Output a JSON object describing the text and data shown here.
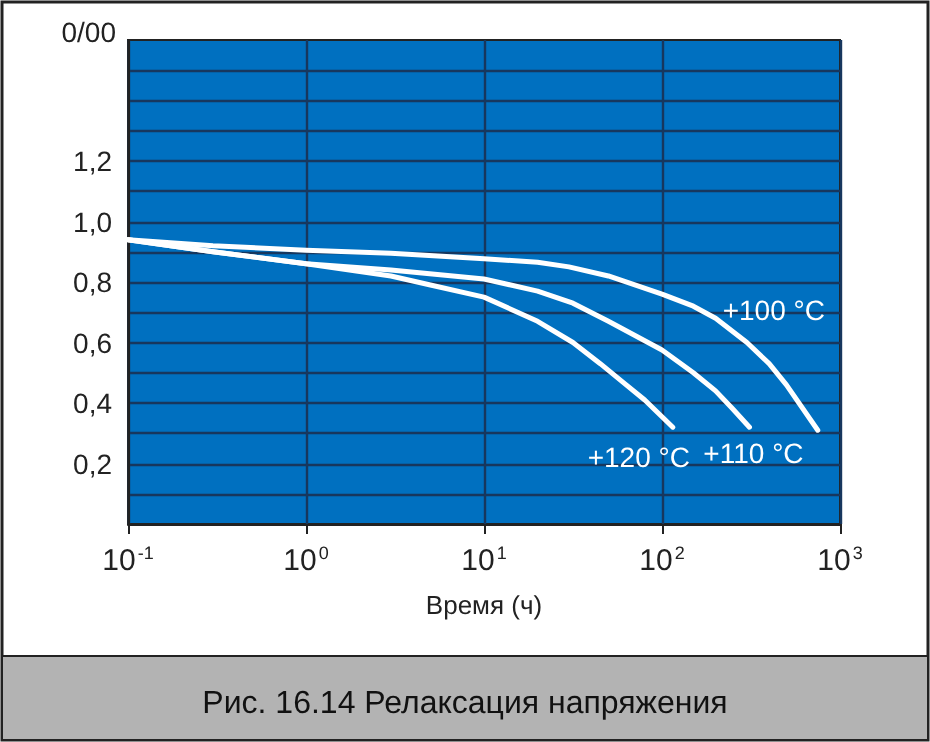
{
  "chart_data": {
    "type": "line",
    "title": "Рис. 16.14 Релаксация напряжения",
    "xlabel": "Время (ч)",
    "ylabel": "0/00",
    "log": "x",
    "grid": true,
    "marker": "none",
    "line_style": "solid",
    "xlim": [
      0.1,
      1000
    ],
    "xticks": [
      {
        "value": 0.1,
        "label": "10$^{-1}$"
      },
      {
        "value": 1,
        "label": "10$^{0}$"
      },
      {
        "value": 10,
        "label": "10$^{1}$"
      },
      {
        "value": 100,
        "label": "10$^{2}$"
      },
      {
        "value": 1000,
        "label": "10$^{3}$"
      }
    ],
    "ylim": [
      0,
      1.6
    ],
    "yticks": [
      {
        "value": 0.1,
        "label": null
      },
      {
        "value": 0.2,
        "label": "0,2"
      },
      {
        "value": 0.3,
        "label": null
      },
      {
        "value": 0.4,
        "label": "0,4"
      },
      {
        "value": 0.5,
        "label": null
      },
      {
        "value": 0.6,
        "label": "0,6"
      },
      {
        "value": 0.7,
        "label": null
      },
      {
        "value": 0.8,
        "label": "0,8"
      },
      {
        "value": 0.9,
        "label": null
      },
      {
        "value": 1.0,
        "label": "1,0"
      },
      {
        "value": 1.1,
        "label": null
      },
      {
        "value": 1.2,
        "label": "1,2"
      },
      {
        "value": 1.3,
        "label": null
      },
      {
        "value": 1.4,
        "label": null
      },
      {
        "value": 1.5,
        "label": null
      }
    ],
    "series": [
      {
        "name": "+100 °C",
        "color": "#ffffff",
        "x": [
          0.1,
          0.3,
          1,
          3,
          10,
          20,
          30,
          50,
          100,
          150,
          200,
          300,
          400,
          500,
          750
        ],
        "values": [
          0.94,
          0.92,
          0.905,
          0.895,
          0.877,
          0.865,
          0.85,
          0.82,
          0.76,
          0.72,
          0.68,
          0.6,
          0.53,
          0.46,
          0.31
        ]
      },
      {
        "name": "+110 °C",
        "color": "#ffffff",
        "x": [
          0.1,
          0.3,
          1,
          3,
          10,
          20,
          31.6,
          50,
          100,
          150,
          200,
          250,
          310
        ],
        "values": [
          0.94,
          0.9,
          0.86,
          0.84,
          0.81,
          0.77,
          0.73,
          0.67,
          0.575,
          0.5,
          0.44,
          0.38,
          0.32
        ]
      },
      {
        "name": "+120 °C",
        "color": "#ffffff",
        "x": [
          0.1,
          0.3,
          1,
          3,
          5,
          10,
          20,
          31.6,
          45,
          60,
          80,
          115
        ],
        "values": [
          0.94,
          0.9,
          0.86,
          0.82,
          0.79,
          0.75,
          0.67,
          0.6,
          0.53,
          0.47,
          0.41,
          0.32
        ]
      }
    ]
  }
}
